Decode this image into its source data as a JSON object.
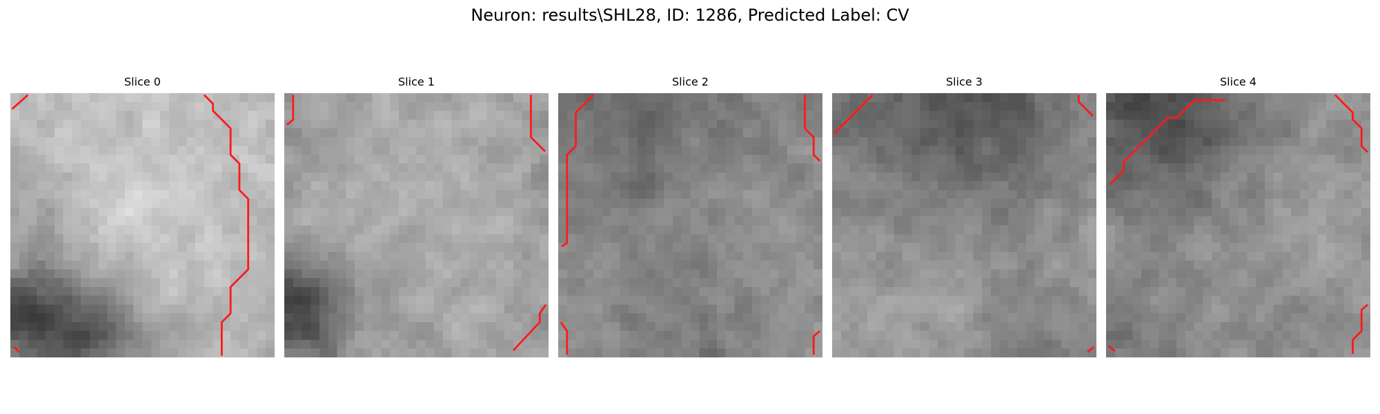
{
  "figure": {
    "title": "Neuron: results\\SHL28, ID: 1286, Predicted Label: CV"
  },
  "slices": [
    {
      "title": "Slice 0"
    },
    {
      "title": "Slice 1"
    },
    {
      "title": "Slice 2"
    },
    {
      "title": "Slice 3"
    },
    {
      "title": "Slice 4"
    }
  ],
  "colors": {
    "contour": "#ff1a1a",
    "colormap": "gray"
  }
}
